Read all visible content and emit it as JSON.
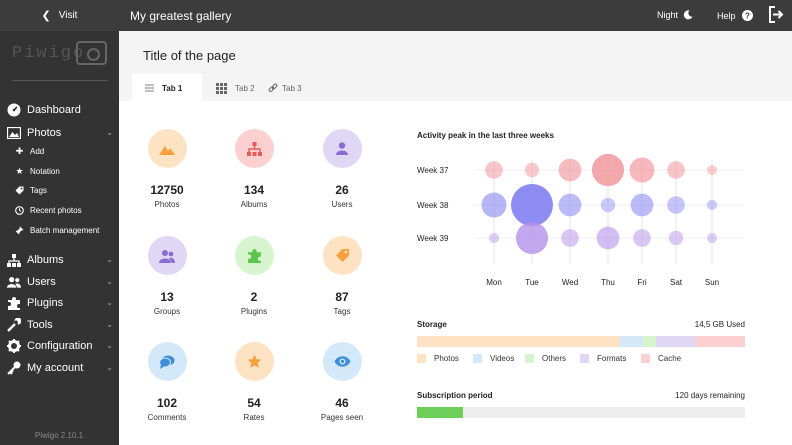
{
  "topbar": {
    "visit_label": "Visit",
    "gallery_title": "My greatest gallery",
    "night_label": "Night",
    "help_label": "Help"
  },
  "sidebar": {
    "logo": "Piwigo",
    "items": [
      {
        "label": "Dashboard",
        "icon": "dashboard-icon"
      },
      {
        "label": "Photos",
        "icon": "photos-icon"
      },
      {
        "label": "Albums",
        "icon": "albums-icon"
      },
      {
        "label": "Users",
        "icon": "users-icon"
      },
      {
        "label": "Plugins",
        "icon": "plugins-icon"
      },
      {
        "label": "Tools",
        "icon": "tools-icon"
      },
      {
        "label": "Configuration",
        "icon": "configuration-icon"
      },
      {
        "label": "My account",
        "icon": "account-icon"
      }
    ],
    "photo_subitems": [
      {
        "label": "Add",
        "icon": "plus-icon"
      },
      {
        "label": "Notation",
        "icon": "star-icon"
      },
      {
        "label": "Tags",
        "icon": "tag-icon"
      },
      {
        "label": "Recent photos",
        "icon": "clock-icon"
      },
      {
        "label": "Batch management",
        "icon": "pin-icon"
      }
    ],
    "version": "Piwigo 2.10.1"
  },
  "page": {
    "title": "Title of the page",
    "tabs": [
      "Tab 1",
      "Tab 2",
      "Tab 3"
    ]
  },
  "stats": [
    {
      "value": "12750",
      "label": "Photos",
      "bg": "#fde3c4",
      "fg": "#f5a03c",
      "icon": "photos-icon"
    },
    {
      "value": "134",
      "label": "Albums",
      "bg": "#fcd0d0",
      "fg": "#e85a5a",
      "icon": "albums-icon"
    },
    {
      "value": "26",
      "label": "Users",
      "bg": "#e0d7f5",
      "fg": "#8a6bd0",
      "icon": "users-icon"
    },
    {
      "value": "13",
      "label": "Groups",
      "bg": "#e0d7f5",
      "fg": "#8a6bd0",
      "icon": "groups-icon"
    },
    {
      "value": "2",
      "label": "Plugins",
      "bg": "#d6f5cf",
      "fg": "#5cc44a",
      "icon": "plugins-icon"
    },
    {
      "value": "87",
      "label": "Tags",
      "bg": "#fde3c4",
      "fg": "#f5a03c",
      "icon": "tags-icon"
    },
    {
      "value": "102",
      "label": "Comments",
      "bg": "#d3e8f9",
      "fg": "#3c8fd8",
      "icon": "comments-icon"
    },
    {
      "value": "54",
      "label": "Rates",
      "bg": "#fde3c4",
      "fg": "#f5a03c",
      "icon": "rates-icon"
    },
    {
      "value": "46",
      "label": "Pages seen",
      "bg": "#d3e8f9",
      "fg": "#3c8fd8",
      "icon": "pages-seen-icon"
    }
  ],
  "activity": {
    "title": "Activity peak in the last three weeks"
  },
  "chart_data": {
    "type": "scatter",
    "title": "Activity peak in the last three weeks",
    "x": [
      "Mon",
      "Tue",
      "Wed",
      "Thu",
      "Fri",
      "Sat",
      "Sun"
    ],
    "y": [
      "Week 37",
      "Week 38",
      "Week 39"
    ],
    "series": [
      {
        "name": "Week 37",
        "color": "#f08f95",
        "values": [
          3,
          2,
          5,
          10,
          6,
          3,
          1
        ]
      },
      {
        "name": "Week 38",
        "color": "#8c8cf2",
        "values": [
          6,
          17,
          5,
          2,
          5,
          3,
          1
        ]
      },
      {
        "name": "Week 39",
        "color": "#b490ea",
        "values": [
          1,
          10,
          3,
          5,
          3,
          2,
          1
        ]
      }
    ],
    "grid": true
  },
  "storage": {
    "label": "Storage",
    "used": "14,5 GB Used",
    "segments": [
      {
        "name": "Photos",
        "color": "#fde3c4",
        "fraction": 0.62
      },
      {
        "name": "Videos",
        "color": "#d3e8f9",
        "fraction": 0.07
      },
      {
        "name": "Others",
        "color": "#d6f5cf",
        "fraction": 0.04
      },
      {
        "name": "Formats",
        "color": "#e0d7f5",
        "fraction": 0.12
      },
      {
        "name": "Cache",
        "color": "#fcd0d0",
        "fraction": 0.15
      }
    ]
  },
  "subscription": {
    "label": "Subscription period",
    "remaining": "120 days remaining",
    "progress": 0.14,
    "color": "#6ece5a"
  }
}
